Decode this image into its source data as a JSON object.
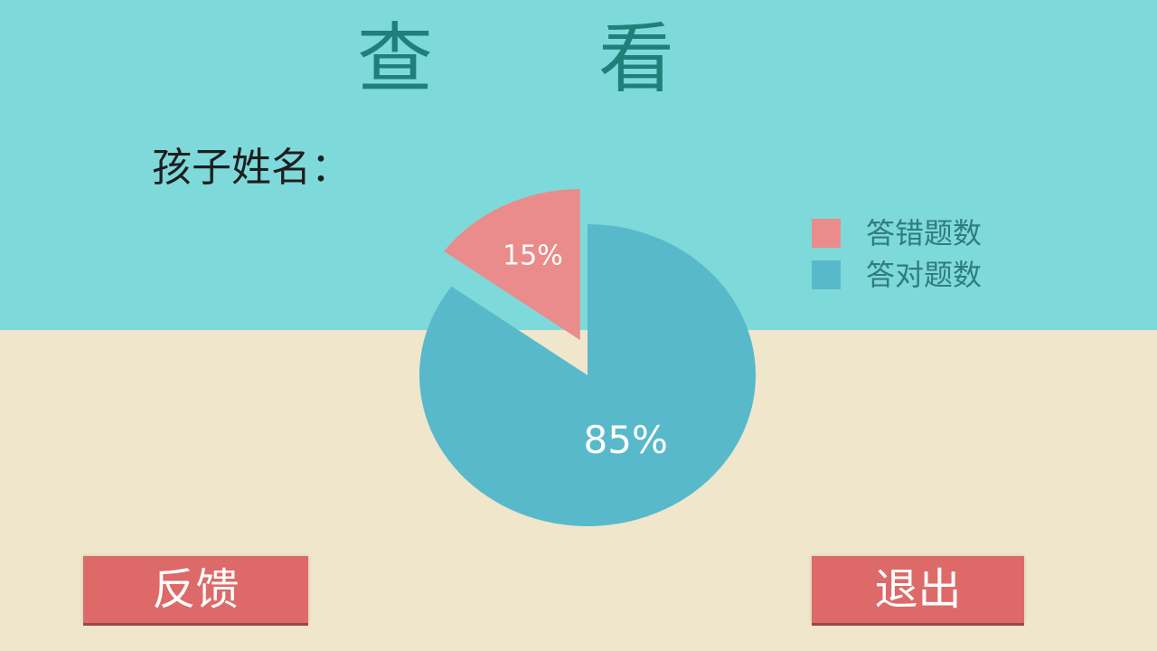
{
  "title": {
    "left_char": "查",
    "right_char": "看"
  },
  "child_name_label": "孩子姓名：",
  "legend": {
    "items": [
      {
        "label": "答错题数",
        "color": "#ea8c8b",
        "icon": "square-swatch"
      },
      {
        "label": "答对题数",
        "color": "#58b9cb",
        "icon": "square-swatch"
      }
    ]
  },
  "chart_data": {
    "type": "pie",
    "title": "",
    "series": [
      {
        "name": "答错题数",
        "value": 15,
        "label": "15%",
        "color": "#ea8c8b",
        "exploded": true
      },
      {
        "name": "答对题数",
        "value": 85,
        "label": "85%",
        "color": "#58b9cb",
        "exploded": false
      }
    ],
    "legend_position": "top-right"
  },
  "buttons": {
    "feedback_label": "反馈",
    "exit_label": "退出"
  },
  "colors": {
    "top_background": "#7ed9da",
    "bottom_background": "#efe6cb",
    "title_color": "#1f7f79",
    "button_color": "#dd6a69"
  }
}
